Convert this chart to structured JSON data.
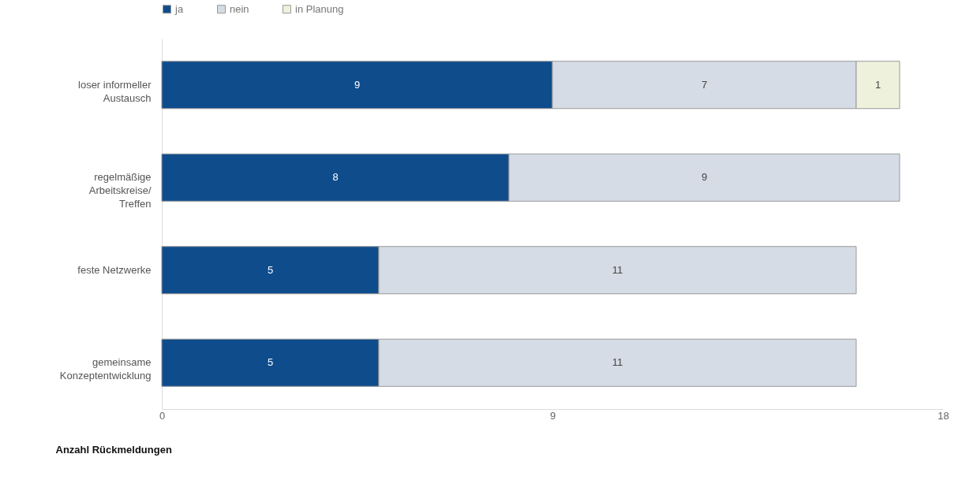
{
  "chart_data": {
    "type": "bar",
    "orientation": "horizontal",
    "stacked": true,
    "xlabel": "Anzahl Rückmeldungen",
    "categories": [
      "loser informeller\nAustausch",
      "regelmäßige\nArbeitskreise/\nTreffen",
      "feste Netzwerke",
      "gemeinsame\nKonzeptentwicklung"
    ],
    "series": [
      {
        "name": "ja",
        "color": "#0f4c8c",
        "values": [
          9,
          8,
          5,
          5
        ]
      },
      {
        "name": "nein",
        "color": "#d6dce5",
        "values": [
          7,
          9,
          11,
          11
        ]
      },
      {
        "name": "in Planung",
        "color": "#eef2dc",
        "values": [
          1,
          null,
          null,
          null
        ]
      }
    ],
    "xlim": [
      0,
      18
    ],
    "xticks": [
      0,
      9,
      18
    ],
    "data_labels": true,
    "legend": "top",
    "grid": false
  }
}
